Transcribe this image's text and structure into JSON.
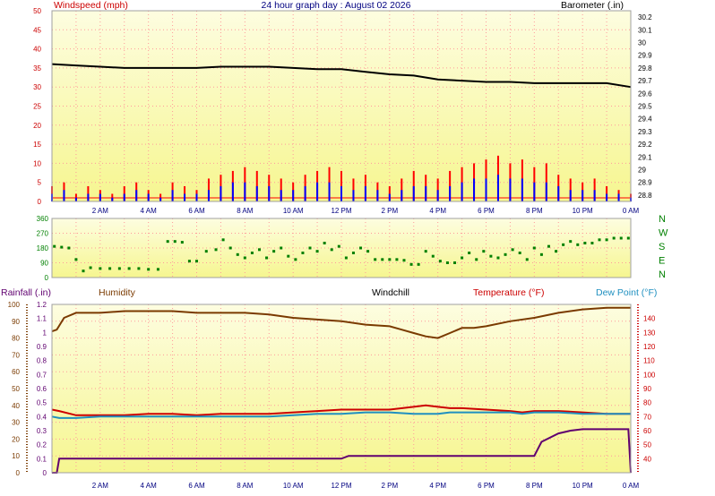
{
  "title": "24 hour graph day : August 02 2026",
  "time_ticks": [
    "2 AM",
    "4 AM",
    "6 AM",
    "8 AM",
    "10 AM",
    "12 PM",
    "2 PM",
    "4 PM",
    "6 PM",
    "8 PM",
    "10 PM",
    "0 AM"
  ],
  "colors": {
    "plot_bg_top": "#fdfde0",
    "plot_bg_bottom": "#f6f690",
    "grid": "#ff9a9a",
    "wind_speed": "#ff0000",
    "wind_gust": "#0000ff",
    "barometer": "#000000",
    "direction": "#008000",
    "humidity": "#7a3a00",
    "temperature": "#cc0000",
    "dewpoint": "#2090c0",
    "rainfall": "#600070"
  },
  "chart_data": [
    {
      "type": "line",
      "panel": "wind-barometer",
      "left_axis_label": "Windspeed (mph)",
      "right_axis_label": "Barometer (.in)",
      "left_ticks": [
        "50",
        "45",
        "40",
        "35",
        "30",
        "25",
        "20",
        "15",
        "10",
        "5",
        "0"
      ],
      "right_ticks": [
        "30.2",
        "30.1",
        "30",
        "29.9",
        "29.8",
        "29.7",
        "29.6",
        "29.5",
        "29.4",
        "29.3",
        "29.2",
        "29.1",
        "29",
        "28.9",
        "28.8"
      ],
      "ylim_left": [
        0,
        50
      ],
      "ylim_right": [
        28.75,
        30.25
      ],
      "series": [
        {
          "key": "barometer",
          "axis": "right",
          "x": [
            0,
            1,
            2,
            3,
            4,
            5,
            6,
            7,
            8,
            9,
            10,
            11,
            12,
            13,
            14,
            15,
            16,
            17,
            18,
            19,
            20,
            21,
            22,
            23,
            24
          ],
          "y": [
            29.83,
            29.82,
            29.81,
            29.8,
            29.8,
            29.8,
            29.8,
            29.81,
            29.81,
            29.81,
            29.8,
            29.79,
            29.79,
            29.77,
            29.75,
            29.74,
            29.71,
            29.7,
            29.69,
            29.69,
            29.68,
            29.68,
            29.68,
            29.68,
            29.65
          ]
        },
        {
          "key": "wind_speed",
          "axis": "left",
          "style": "spikes",
          "x": [
            0,
            0.5,
            1,
            1.5,
            2,
            2.5,
            3,
            3.5,
            4,
            4.5,
            5,
            5.5,
            6,
            6.5,
            7,
            7.5,
            8,
            8.5,
            9,
            9.5,
            10,
            10.5,
            11,
            11.5,
            12,
            12.5,
            13,
            13.5,
            14,
            14.5,
            15,
            15.5,
            16,
            16.5,
            17,
            17.5,
            18,
            18.5,
            19,
            19.5,
            20,
            20.5,
            21,
            21.5,
            22,
            22.5,
            23,
            23.5,
            24
          ],
          "y": [
            4,
            5,
            2,
            4,
            3,
            2,
            4,
            5,
            3,
            2,
            5,
            4,
            3,
            6,
            7,
            8,
            9,
            8,
            7,
            6,
            5,
            7,
            8,
            9,
            8,
            6,
            7,
            5,
            4,
            6,
            8,
            7,
            6,
            8,
            9,
            10,
            11,
            12,
            10,
            11,
            9,
            10,
            7,
            6,
            5,
            6,
            4,
            3,
            2
          ]
        },
        {
          "key": "wind_gust",
          "axis": "left",
          "style": "spikes",
          "x": [
            0,
            0.5,
            1,
            1.5,
            2,
            2.5,
            3,
            3.5,
            4,
            4.5,
            5,
            5.5,
            6,
            6.5,
            7,
            7.5,
            8,
            8.5,
            9,
            9.5,
            10,
            10.5,
            11,
            11.5,
            12,
            12.5,
            13,
            13.5,
            14,
            14.5,
            15,
            15.5,
            16,
            16.5,
            17,
            17.5,
            18,
            18.5,
            19,
            19.5,
            20,
            20.5,
            21,
            21.5,
            22,
            22.5,
            23,
            23.5,
            24
          ],
          "y": [
            2,
            3,
            1,
            2,
            2,
            1,
            2,
            3,
            2,
            1,
            3,
            2,
            2,
            3,
            4,
            5,
            5,
            4,
            4,
            3,
            3,
            4,
            5,
            5,
            4,
            3,
            4,
            3,
            2,
            3,
            4,
            4,
            3,
            4,
            5,
            6,
            6,
            7,
            6,
            6,
            5,
            5,
            4,
            3,
            3,
            3,
            2,
            2,
            1
          ]
        }
      ]
    },
    {
      "type": "scatter",
      "panel": "wind-direction",
      "left_ticks": [
        "360",
        "270",
        "180",
        "90",
        "0"
      ],
      "right_ticks": [
        "N",
        "W",
        "S",
        "E",
        "N"
      ],
      "ylim": [
        0,
        360
      ],
      "series": [
        {
          "key": "direction",
          "x": [
            0.1,
            0.4,
            0.7,
            1.0,
            1.3,
            1.6,
            2.0,
            2.4,
            2.8,
            3.2,
            3.6,
            4.0,
            4.4,
            4.8,
            5.1,
            5.4,
            5.7,
            6.0,
            6.4,
            6.8,
            7.1,
            7.4,
            7.7,
            8.0,
            8.3,
            8.6,
            8.9,
            9.2,
            9.5,
            9.8,
            10.1,
            10.4,
            10.7,
            11.0,
            11.3,
            11.6,
            11.9,
            12.2,
            12.5,
            12.8,
            13.1,
            13.4,
            13.7,
            14.0,
            14.3,
            14.6,
            14.9,
            15.2,
            15.5,
            15.8,
            16.1,
            16.4,
            16.7,
            17.0,
            17.3,
            17.6,
            17.9,
            18.2,
            18.5,
            18.8,
            19.1,
            19.4,
            19.7,
            20.0,
            20.3,
            20.6,
            20.9,
            21.2,
            21.5,
            21.8,
            22.1,
            22.4,
            22.7,
            23.0,
            23.3,
            23.6,
            23.9
          ],
          "y": [
            190,
            185,
            180,
            110,
            40,
            60,
            55,
            55,
            55,
            55,
            55,
            50,
            50,
            220,
            220,
            215,
            100,
            100,
            160,
            170,
            230,
            180,
            140,
            120,
            150,
            170,
            120,
            160,
            180,
            130,
            110,
            150,
            180,
            160,
            210,
            170,
            190,
            120,
            150,
            180,
            160,
            110,
            110,
            110,
            110,
            105,
            80,
            80,
            160,
            130,
            100,
            90,
            90,
            120,
            150,
            110,
            160,
            130,
            120,
            140,
            170,
            150,
            110,
            180,
            140,
            190,
            160,
            200,
            220,
            200,
            210,
            210,
            230,
            230,
            240,
            240,
            240
          ]
        }
      ]
    },
    {
      "type": "line",
      "panel": "temperature-humidity-rain",
      "rain_axis_label": "Rainfall (.in)",
      "humidity_label": "Humidity",
      "windchill_label": "Windchill",
      "temperature_label": "Temperature (°F)",
      "dewpoint_label": "Dew Point (°F)",
      "humidity_ticks": [
        "100",
        "90",
        "80",
        "70",
        "60",
        "50",
        "40",
        "30",
        "20",
        "10",
        "0"
      ],
      "rain_ticks": [
        "1.2",
        "1.1",
        "1",
        "0.9",
        "0.8",
        "0.7",
        "0.6",
        "0.5",
        "0.4",
        "0.3",
        "0.2",
        "0.1",
        "0"
      ],
      "temp_ticks": [
        "140",
        "130",
        "120",
        "110",
        "100",
        "90",
        "80",
        "70",
        "60",
        "50",
        "40"
      ],
      "ylim_humidity": [
        0,
        100
      ],
      "ylim_rain": [
        0,
        1.2
      ],
      "ylim_temp": [
        30,
        150
      ],
      "series": [
        {
          "key": "humidity",
          "axis": "humidity",
          "x": [
            0,
            0.2,
            0.5,
            1,
            2,
            3,
            4,
            5,
            6,
            7,
            8,
            9,
            10,
            11,
            12,
            13,
            14,
            14.5,
            15,
            15.5,
            16,
            16.5,
            17,
            17.5,
            18,
            19,
            20,
            21,
            22,
            23,
            24
          ],
          "y": [
            84,
            85,
            92,
            95,
            95,
            96,
            96,
            96,
            95,
            95,
            95,
            94,
            92,
            91,
            90,
            88,
            87,
            85,
            83,
            81,
            80,
            83,
            86,
            86,
            87,
            90,
            92,
            95,
            97,
            98,
            98
          ]
        },
        {
          "key": "temperature",
          "axis": "temp",
          "x": [
            0,
            0.3,
            1,
            2,
            3,
            4,
            5,
            6,
            7,
            8,
            9,
            10,
            11,
            12,
            13,
            14,
            15,
            15.5,
            16,
            16.5,
            17,
            18,
            19,
            19.5,
            20,
            21,
            22,
            23,
            24
          ],
          "y": [
            75,
            74,
            71,
            71,
            71,
            72,
            72,
            71,
            72,
            72,
            72,
            73,
            74,
            75,
            75,
            75,
            77,
            78,
            77,
            76,
            76,
            75,
            74,
            73,
            74,
            74,
            73,
            72,
            72
          ]
        },
        {
          "key": "dewpoint",
          "axis": "temp",
          "x": [
            0,
            0.3,
            1,
            2,
            3,
            4,
            5,
            6,
            7,
            8,
            9,
            10,
            11,
            12,
            13,
            14,
            15,
            15.5,
            16,
            16.5,
            17,
            18,
            19,
            19.5,
            20,
            21,
            22,
            23,
            24
          ],
          "y": [
            70,
            69,
            69,
            70,
            70,
            70,
            70,
            70,
            70,
            70,
            70,
            71,
            72,
            72,
            73,
            73,
            72,
            72,
            72,
            73,
            73,
            73,
            73,
            72,
            73,
            73,
            72,
            72,
            72
          ]
        },
        {
          "key": "rainfall",
          "axis": "rain",
          "x": [
            0,
            0.2,
            0.3,
            0.5,
            12,
            12.3,
            20,
            20.3,
            21,
            21.5,
            22,
            23,
            23.9,
            24
          ],
          "y": [
            0,
            0,
            0.1,
            0.1,
            0.1,
            0.12,
            0.12,
            0.22,
            0.28,
            0.3,
            0.31,
            0.31,
            0.31,
            0
          ]
        }
      ]
    }
  ]
}
